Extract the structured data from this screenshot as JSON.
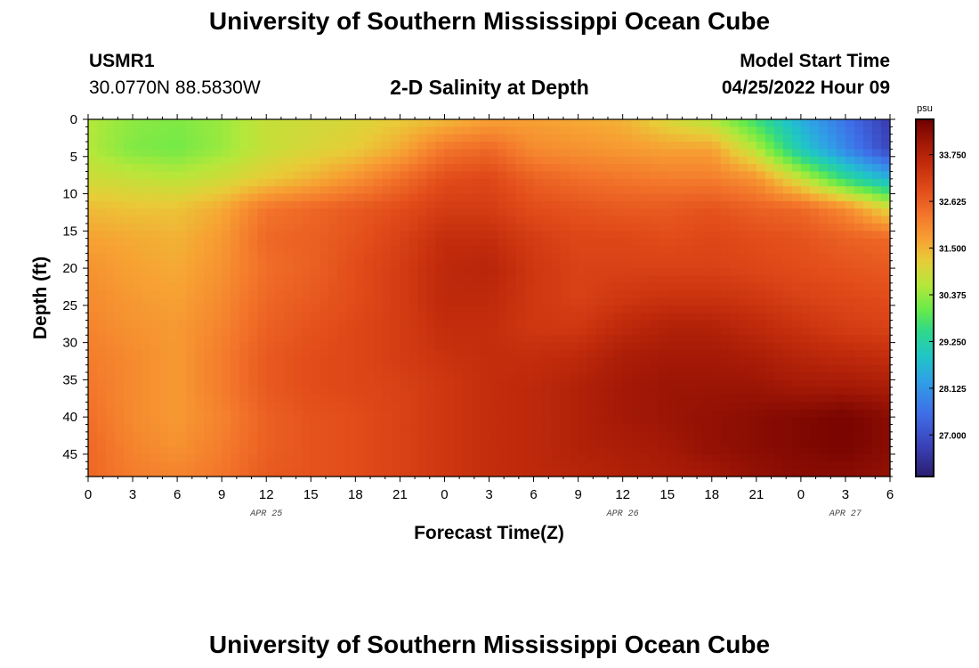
{
  "page": {
    "title_top": "University of Southern Mississippi Ocean Cube",
    "title_bottom": "University of Southern Mississippi Ocean Cube",
    "station_id": "USMR1",
    "station_coords": "30.0770N  88.5830W",
    "plot_title": "2-D Salinity at Depth",
    "model_start_label": "Model Start Time",
    "model_start_value": "04/25/2022 Hour 09"
  },
  "chart_data": {
    "type": "heatmap",
    "title": "2-D Salinity at Depth",
    "xlabel": "Forecast Time(Z)",
    "ylabel": "Depth (ft)",
    "x_tick_labels": [
      "0",
      "3",
      "6",
      "9",
      "12",
      "15",
      "18",
      "21",
      "0",
      "3",
      "6",
      "9",
      "12",
      "15",
      "18",
      "21",
      "0",
      "3",
      "6"
    ],
    "x_date_labels": [
      {
        "label": "APR 25",
        "at_tick": 4
      },
      {
        "label": "APR 26",
        "at_tick": 12
      },
      {
        "label": "APR 27",
        "at_tick": 17
      }
    ],
    "y_ticks": [
      0,
      5,
      10,
      15,
      20,
      25,
      30,
      35,
      40,
      45
    ],
    "ylim": [
      0,
      48
    ],
    "y_inverted": true,
    "x_range_hours": [
      0,
      54
    ],
    "colorbar": {
      "unit": "psu",
      "ticks": [
        "33.750",
        "32.625",
        "31.500",
        "30.375",
        "29.250",
        "28.125",
        "27.000"
      ],
      "tick_values": [
        33.75,
        32.625,
        31.5,
        30.375,
        29.25,
        28.125,
        27.0
      ],
      "range": [
        26.0,
        34.6
      ]
    },
    "colormap": [
      {
        "v": 26.0,
        "color": "#2a1f6e"
      },
      {
        "v": 26.7,
        "color": "#3a3fb5"
      },
      {
        "v": 27.5,
        "color": "#3f6de8"
      },
      {
        "v": 28.3,
        "color": "#2fa0e6"
      },
      {
        "v": 28.9,
        "color": "#1fc6c6"
      },
      {
        "v": 29.5,
        "color": "#2fd88a"
      },
      {
        "v": 30.0,
        "color": "#66ea4a"
      },
      {
        "v": 30.6,
        "color": "#b4e83a"
      },
      {
        "v": 31.2,
        "color": "#e8cc38"
      },
      {
        "v": 31.7,
        "color": "#f7a133"
      },
      {
        "v": 32.3,
        "color": "#f3752b"
      },
      {
        "v": 32.9,
        "color": "#e24c1a"
      },
      {
        "v": 33.5,
        "color": "#c42d0c"
      },
      {
        "v": 34.0,
        "color": "#a41906"
      },
      {
        "v": 34.6,
        "color": "#700000"
      }
    ],
    "grid_x_hours": [
      0,
      3,
      6,
      9,
      12,
      15,
      18,
      21,
      24,
      27,
      30,
      33,
      36,
      39,
      42,
      45,
      48,
      51,
      54
    ],
    "grid_depth_ft": [
      0,
      4,
      8,
      12,
      16,
      20,
      24,
      28,
      32,
      36,
      40,
      44,
      48
    ],
    "salinity_psu": [
      [
        30.6,
        30.3,
        30.2,
        30.4,
        30.8,
        30.9,
        31.0,
        31.2,
        31.4,
        31.7,
        31.7,
        31.6,
        31.5,
        31.0,
        30.6,
        29.6,
        28.5,
        27.6,
        26.6
      ],
      [
        30.6,
        30.2,
        30.1,
        30.4,
        30.8,
        31.0,
        31.2,
        31.6,
        32.3,
        32.5,
        32.0,
        31.9,
        31.8,
        31.7,
        31.7,
        30.6,
        29.0,
        27.9,
        26.8
      ],
      [
        30.9,
        30.8,
        30.7,
        30.9,
        31.2,
        31.5,
        31.9,
        32.4,
        32.9,
        33.0,
        32.6,
        32.4,
        32.3,
        32.2,
        32.2,
        31.9,
        30.8,
        29.5,
        28.6
      ],
      [
        31.4,
        31.3,
        31.3,
        31.6,
        32.3,
        32.5,
        32.7,
        32.9,
        33.2,
        33.2,
        32.9,
        32.8,
        32.7,
        32.7,
        32.8,
        32.6,
        32.5,
        32.0,
        31.0
      ],
      [
        31.7,
        31.6,
        31.5,
        31.8,
        32.5,
        32.6,
        32.8,
        33.1,
        33.5,
        33.5,
        33.2,
        33.0,
        33.0,
        32.9,
        33.0,
        32.9,
        32.8,
        32.6,
        32.5
      ],
      [
        31.9,
        31.7,
        31.6,
        31.9,
        32.4,
        32.6,
        32.9,
        33.2,
        33.6,
        33.7,
        33.3,
        33.1,
        33.1,
        33.1,
        33.1,
        33.0,
        32.9,
        32.8,
        32.7
      ],
      [
        32.0,
        31.8,
        31.7,
        32.0,
        32.5,
        32.7,
        32.9,
        33.2,
        33.6,
        33.6,
        33.3,
        33.1,
        33.3,
        33.4,
        33.4,
        33.3,
        33.1,
        33.0,
        32.9
      ],
      [
        32.1,
        31.9,
        31.8,
        32.1,
        32.6,
        32.8,
        33.0,
        33.2,
        33.5,
        33.5,
        33.3,
        33.3,
        33.6,
        33.8,
        33.8,
        33.6,
        33.4,
        33.2,
        33.1
      ],
      [
        32.2,
        32.0,
        31.8,
        32.2,
        32.7,
        32.9,
        33.0,
        33.2,
        33.4,
        33.5,
        33.5,
        33.6,
        33.9,
        34.0,
        34.0,
        33.9,
        33.7,
        33.6,
        33.5
      ],
      [
        32.3,
        32.0,
        31.8,
        32.2,
        32.7,
        32.9,
        33.0,
        33.1,
        33.3,
        33.5,
        33.6,
        33.8,
        34.0,
        34.1,
        34.1,
        34.1,
        34.0,
        34.0,
        33.9
      ],
      [
        32.4,
        32.0,
        31.8,
        32.1,
        32.6,
        32.8,
        32.9,
        33.1,
        33.3,
        33.5,
        33.6,
        33.8,
        34.0,
        34.1,
        34.2,
        34.3,
        34.4,
        34.5,
        34.3
      ],
      [
        32.5,
        32.1,
        31.9,
        32.2,
        32.6,
        32.8,
        32.9,
        33.1,
        33.3,
        33.5,
        33.6,
        33.8,
        33.9,
        34.0,
        34.2,
        34.3,
        34.4,
        34.5,
        34.3
      ],
      [
        32.5,
        32.2,
        32.1,
        32.3,
        32.7,
        32.8,
        32.9,
        33.1,
        33.3,
        33.5,
        33.6,
        33.7,
        33.8,
        33.9,
        34.0,
        34.2,
        34.3,
        34.3,
        34.2
      ]
    ]
  }
}
